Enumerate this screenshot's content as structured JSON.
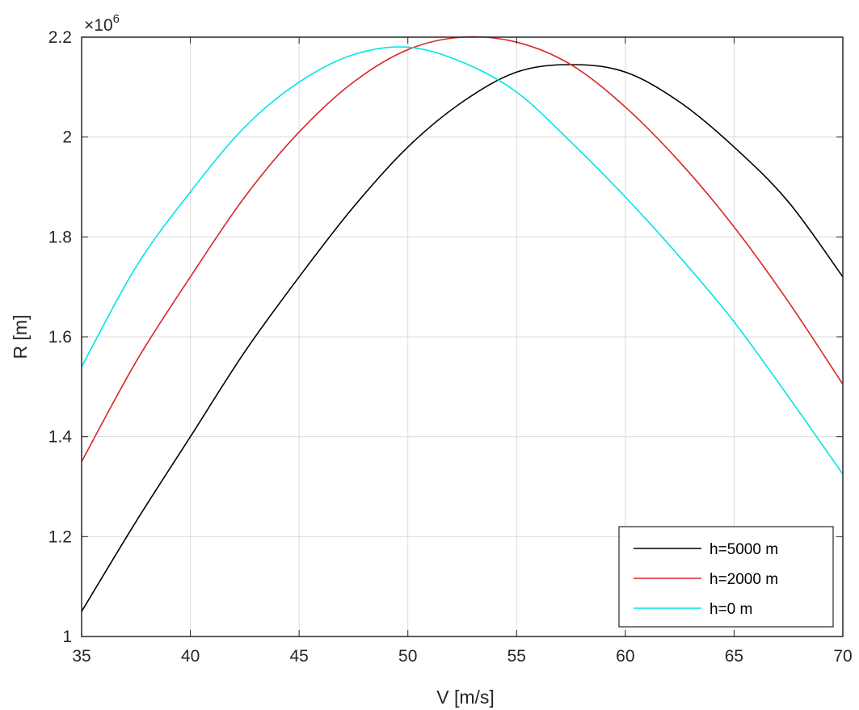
{
  "chart_data": {
    "type": "line",
    "xlabel": "V [m/s]",
    "ylabel": "R [m]",
    "y_multiplier": {
      "base": "×10",
      "exponent": "6"
    },
    "xlim": [
      35,
      70
    ],
    "ylim": [
      1.0,
      2.2
    ],
    "x_ticks": [
      "35",
      "40",
      "45",
      "50",
      "55",
      "60",
      "65",
      "70"
    ],
    "y_ticks": [
      "1",
      "1.2",
      "1.4",
      "1.6",
      "1.8",
      "2",
      "2.2"
    ],
    "grid": true,
    "legend_position": "bottom-right",
    "x": [
      35,
      37.5,
      40,
      42.5,
      45,
      47.5,
      50,
      52.5,
      55,
      57.5,
      60,
      62.5,
      65,
      67.5,
      70
    ],
    "series": [
      {
        "name": "h=5000 m",
        "color": "#000000",
        "values": [
          1.05,
          1.23,
          1.4,
          1.57,
          1.72,
          1.86,
          1.98,
          2.07,
          2.13,
          2.145,
          2.13,
          2.07,
          1.98,
          1.87,
          1.72
        ]
      },
      {
        "name": "h=2000 m",
        "color": "#d62728",
        "values": [
          1.35,
          1.55,
          1.72,
          1.88,
          2.01,
          2.11,
          2.175,
          2.2,
          2.19,
          2.145,
          2.06,
          1.95,
          1.82,
          1.67,
          1.505
        ]
      },
      {
        "name": "h=0 m",
        "color": "#00e5e5",
        "values": [
          1.54,
          1.74,
          1.89,
          2.02,
          2.11,
          2.165,
          2.18,
          2.15,
          2.09,
          1.99,
          1.88,
          1.76,
          1.63,
          1.48,
          1.325
        ]
      }
    ]
  }
}
